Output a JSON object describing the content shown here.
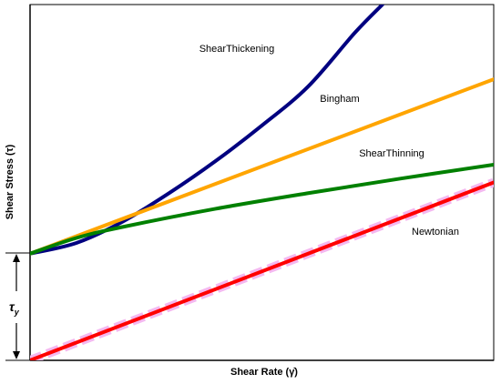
{
  "chart_data": {
    "type": "line",
    "x_label": "Shear Rate (γ̇)",
    "y_label": "Shear Stress (τ)",
    "yield_symbol": "τ",
    "yield_subscript": "y",
    "xlim": [
      0,
      10
    ],
    "ylim": [
      0,
      10
    ],
    "series": [
      {
        "name": "Newtonian",
        "color": "#ff0000",
        "x": [
          0,
          10
        ],
        "values": [
          0,
          5
        ]
      },
      {
        "name": "ShearThickening",
        "color": "#000080",
        "x": [
          0,
          1,
          2,
          3,
          4,
          5,
          6,
          7,
          7.6
        ],
        "values": [
          3,
          3.3,
          3.9,
          4.7,
          5.6,
          6.6,
          7.7,
          9.2,
          10
        ]
      },
      {
        "name": "Bingham",
        "color": "#ffa500",
        "x": [
          0,
          10
        ],
        "values": [
          3,
          7.9
        ]
      },
      {
        "name": "ShearThinning",
        "color": "#008000",
        "x": [
          0,
          1,
          2,
          4,
          6,
          8,
          10
        ],
        "values": [
          3,
          3.44,
          3.75,
          4.26,
          4.7,
          5.11,
          5.5
        ]
      }
    ]
  }
}
